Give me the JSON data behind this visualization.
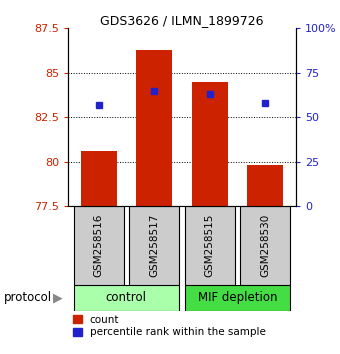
{
  "title": "GDS3626 / ILMN_1899726",
  "samples": [
    "GSM258516",
    "GSM258517",
    "GSM258515",
    "GSM258530"
  ],
  "bar_values": [
    80.6,
    86.3,
    84.5,
    79.8
  ],
  "percentile_values": [
    83.2,
    84.0,
    83.8,
    83.3
  ],
  "bar_bottom": 77.5,
  "ylim": [
    77.5,
    87.5
  ],
  "left_yticks": [
    77.5,
    80.0,
    82.5,
    85.0,
    87.5
  ],
  "left_yticklabels": [
    "77.5",
    "80",
    "82.5",
    "85",
    "87.5"
  ],
  "right_yticks_pct": [
    0,
    25,
    50,
    75,
    100
  ],
  "right_yticklabels": [
    "0",
    "25",
    "50",
    "75",
    "100%"
  ],
  "bar_color": "#cc2200",
  "percentile_color": "#2222cc",
  "group_control_color": "#aaffaa",
  "group_mif_color": "#44dd44",
  "group_control_label": "control",
  "group_mif_label": "MIF depletion",
  "protocol_label": "protocol",
  "legend_count_label": "count",
  "legend_percentile_label": "percentile rank within the sample",
  "bar_width": 0.65,
  "bg_color": "#ffffff",
  "tick_label_color_left": "#cc2200",
  "tick_label_color_right": "#2222cc",
  "grid_dotted_at": [
    80.0,
    82.5,
    85.0
  ],
  "sample_box_color": "#cccccc",
  "sample_label_fontsize": 7.5,
  "title_fontsize": 9
}
